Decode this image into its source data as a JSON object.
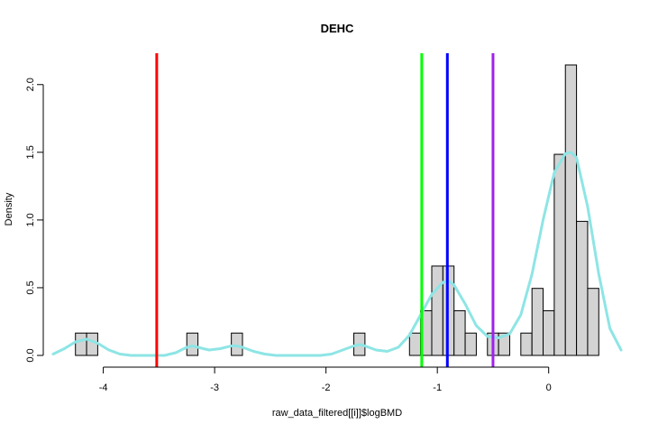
{
  "chart_data": {
    "type": "bar",
    "title": "DEHC",
    "xlabel": "raw_data_filtered[[i]]$logBMD",
    "ylabel": "Density",
    "xlim": [
      -4.45,
      0.65
    ],
    "ylim": [
      0,
      2.2
    ],
    "x_ticks": [
      -4,
      -3,
      -2,
      -1,
      0
    ],
    "x_tick_labels": [
      "-4",
      "-3",
      "-2",
      "-1",
      "0"
    ],
    "y_ticks": [
      0.0,
      0.5,
      1.0,
      1.5,
      2.0
    ],
    "y_tick_labels": [
      "0.0",
      "0.5",
      "1.0",
      "1.5",
      "2.0"
    ],
    "histogram": {
      "bin_width": 0.1,
      "bins": [
        {
          "x0": -4.25,
          "x1": -4.15,
          "density": 0.165
        },
        {
          "x0": -4.15,
          "x1": -4.05,
          "density": 0.165
        },
        {
          "x0": -3.25,
          "x1": -3.15,
          "density": 0.165
        },
        {
          "x0": -2.85,
          "x1": -2.75,
          "density": 0.165
        },
        {
          "x0": -1.75,
          "x1": -1.65,
          "density": 0.165
        },
        {
          "x0": -1.25,
          "x1": -1.15,
          "density": 0.165
        },
        {
          "x0": -1.15,
          "x1": -1.05,
          "density": 0.33
        },
        {
          "x0": -1.05,
          "x1": -0.95,
          "density": 0.66
        },
        {
          "x0": -0.95,
          "x1": -0.85,
          "density": 0.66
        },
        {
          "x0": -0.85,
          "x1": -0.75,
          "density": 0.33
        },
        {
          "x0": -0.75,
          "x1": -0.65,
          "density": 0.165
        },
        {
          "x0": -0.55,
          "x1": -0.45,
          "density": 0.165
        },
        {
          "x0": -0.45,
          "x1": -0.35,
          "density": 0.165
        },
        {
          "x0": -0.25,
          "x1": -0.15,
          "density": 0.165
        },
        {
          "x0": -0.15,
          "x1": -0.05,
          "density": 0.495
        },
        {
          "x0": -0.05,
          "x1": 0.05,
          "density": 0.33
        },
        {
          "x0": 0.05,
          "x1": 0.15,
          "density": 1.485
        },
        {
          "x0": 0.15,
          "x1": 0.25,
          "density": 2.145
        },
        {
          "x0": 0.25,
          "x1": 0.35,
          "density": 0.99
        },
        {
          "x0": 0.35,
          "x1": 0.45,
          "density": 0.495
        }
      ]
    },
    "density_curve": {
      "color": "#8EE5E5",
      "x": [
        -4.45,
        -4.35,
        -4.25,
        -4.15,
        -4.05,
        -3.95,
        -3.85,
        -3.75,
        -3.65,
        -3.55,
        -3.45,
        -3.35,
        -3.25,
        -3.2,
        -3.15,
        -3.05,
        -2.95,
        -2.85,
        -2.8,
        -2.75,
        -2.65,
        -2.55,
        -2.45,
        -2.35,
        -2.25,
        -2.15,
        -2.05,
        -1.95,
        -1.85,
        -1.75,
        -1.7,
        -1.65,
        -1.55,
        -1.45,
        -1.35,
        -1.25,
        -1.15,
        -1.05,
        -0.95,
        -0.9,
        -0.85,
        -0.75,
        -0.65,
        -0.55,
        -0.45,
        -0.35,
        -0.25,
        -0.15,
        -0.05,
        0.05,
        0.15,
        0.2,
        0.25,
        0.35,
        0.45,
        0.55,
        0.65
      ],
      "y": [
        0.01,
        0.05,
        0.1,
        0.12,
        0.09,
        0.04,
        0.01,
        0.0,
        0.0,
        0.0,
        0.0,
        0.02,
        0.06,
        0.07,
        0.06,
        0.04,
        0.05,
        0.07,
        0.07,
        0.06,
        0.03,
        0.01,
        0.0,
        0.0,
        0.0,
        0.0,
        0.0,
        0.01,
        0.04,
        0.07,
        0.08,
        0.07,
        0.04,
        0.03,
        0.06,
        0.15,
        0.3,
        0.45,
        0.54,
        0.55,
        0.52,
        0.38,
        0.22,
        0.14,
        0.13,
        0.16,
        0.3,
        0.6,
        1.0,
        1.35,
        1.49,
        1.5,
        1.46,
        1.1,
        0.6,
        0.2,
        0.04
      ]
    },
    "vertical_lines": [
      {
        "x": -3.52,
        "color": "#FF0000"
      },
      {
        "x": -1.14,
        "color": "#00FF00"
      },
      {
        "x": -0.91,
        "color": "#0000FF"
      },
      {
        "x": -0.5,
        "color": "#A020F0"
      }
    ],
    "grid": false,
    "legend": "none"
  }
}
